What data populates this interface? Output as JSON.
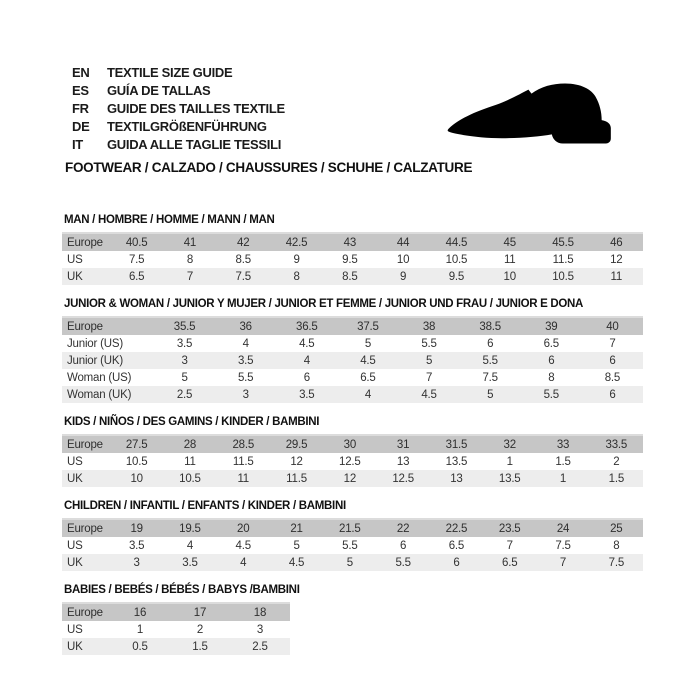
{
  "header": {
    "languages": [
      {
        "code": "EN",
        "label": "TEXTILE SIZE GUIDE"
      },
      {
        "code": "ES",
        "label": "GUÍA DE TALLAS"
      },
      {
        "code": "FR",
        "label": "GUIDE DES TAILLES TEXTILE"
      },
      {
        "code": "DE",
        "label": "TEXTILGRÖßENFÜHRUNG"
      },
      {
        "code": "IT",
        "label": "GUIDA ALLE TAGLIE TESSILI"
      }
    ],
    "category_heading": "FOOTWEAR / CALZADO / CHAUSSURES / SCHUHE / CALZATURE",
    "shoe_icon": "dress-shoe-silhouette",
    "shoe_icon_color": "#000000"
  },
  "colors": {
    "table_header_bg": "#c6c6c6",
    "table_header_border": "#dcdcdc",
    "table_stripe_bg": "#ededed",
    "text": "#333333",
    "background": "#ffffff"
  },
  "tables": [
    {
      "title": "MAN / HOMBRE / HOMME / MANN / MAN",
      "rows": [
        {
          "label": "Europe",
          "values": [
            "40.5",
            "41",
            "42",
            "42.5",
            "43",
            "44",
            "44.5",
            "45",
            "45.5",
            "46"
          ]
        },
        {
          "label": "US",
          "values": [
            "7.5",
            "8",
            "8.5",
            "9",
            "9.5",
            "10",
            "10.5",
            "11",
            "11.5",
            "12"
          ]
        },
        {
          "label": "UK",
          "values": [
            "6.5",
            "7",
            "7.5",
            "8",
            "8.5",
            "9",
            "9.5",
            "10",
            "10.5",
            "11"
          ]
        }
      ]
    },
    {
      "title": "JUNIOR & WOMAN / JUNIOR Y MUJER / JUNIOR ET FEMME / JUNIOR UND FRAU / JUNIOR E DONA",
      "rows": [
        {
          "label": "Europe",
          "values": [
            "35.5",
            "36",
            "36.5",
            "37.5",
            "38",
            "38.5",
            "39",
            "40"
          ]
        },
        {
          "label": "Junior (US)",
          "values": [
            "3.5",
            "4",
            "4.5",
            "5",
            "5.5",
            "6",
            "6.5",
            "7"
          ]
        },
        {
          "label": "Junior (UK)",
          "values": [
            "3",
            "3.5",
            "4",
            "4.5",
            "5",
            "5.5",
            "6",
            "6"
          ]
        },
        {
          "label": "Woman (US)",
          "values": [
            "5",
            "5.5",
            "6",
            "6.5",
            "7",
            "7.5",
            "8",
            "8.5"
          ]
        },
        {
          "label": "Woman (UK)",
          "values": [
            "2.5",
            "3",
            "3.5",
            "4",
            "4.5",
            "5",
            "5.5",
            "6"
          ]
        }
      ]
    },
    {
      "title": "KIDS / NIÑOS / DES GAMINS / KINDER / BAMBINI",
      "rows": [
        {
          "label": "Europe",
          "values": [
            "27.5",
            "28",
            "28.5",
            "29.5",
            "30",
            "31",
            "31.5",
            "32",
            "33",
            "33.5"
          ]
        },
        {
          "label": "US",
          "values": [
            "10.5",
            "11",
            "11.5",
            "12",
            "12.5",
            "13",
            "13.5",
            "1",
            "1.5",
            "2"
          ]
        },
        {
          "label": "UK",
          "values": [
            "10",
            "10.5",
            "11",
            "11.5",
            "12",
            "12.5",
            "13",
            "13.5",
            "1",
            "1.5"
          ]
        }
      ]
    },
    {
      "title": "CHILDREN / INFANTIL / ENFANTS / KINDER / BAMBINI",
      "rows": [
        {
          "label": "Europe",
          "values": [
            "19",
            "19.5",
            "20",
            "21",
            "21.5",
            "22",
            "22.5",
            "23.5",
            "24",
            "25"
          ]
        },
        {
          "label": "US",
          "values": [
            "3.5",
            "4",
            "4.5",
            "5",
            "5.5",
            "6",
            "6.5",
            "7",
            "7.5",
            "8"
          ]
        },
        {
          "label": "UK",
          "values": [
            "3",
            "3.5",
            "4",
            "4.5",
            "5",
            "5.5",
            "6",
            "6.5",
            "7",
            "7.5"
          ]
        }
      ]
    },
    {
      "title": "BABIES  / BEBÉS / BÉBÉS / BABYS /BAMBINI",
      "rows": [
        {
          "label": "Europe",
          "values": [
            "16",
            "17",
            "18"
          ]
        },
        {
          "label": "US",
          "values": [
            "1",
            "2",
            "3"
          ]
        },
        {
          "label": "UK",
          "values": [
            "0.5",
            "1.5",
            "2.5"
          ]
        }
      ]
    }
  ]
}
